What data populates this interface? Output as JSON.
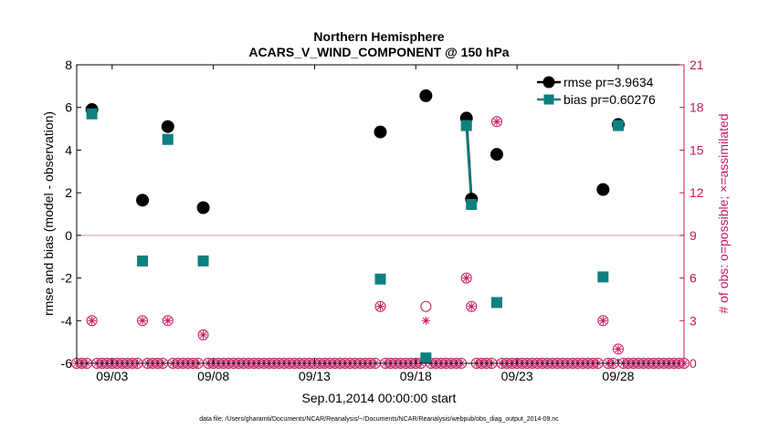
{
  "chart_data": {
    "type": "scatter",
    "title_line1": "Northern Hemisphere",
    "title_line2": "ACARS_V_WIND_COMPONENT @ 150 hPa",
    "xlabel": "Sep.01,2014 00:00:00 start",
    "ylabel_left": "rmse and bias (model - observation)",
    "ylabel_right": "# of obs: o=possible; ×=assimilated",
    "footer": "data file: /Users/gharamti/Documents/NCAR/Reanalysis/~/Documents/NCAR/Reanalysis/webpub/obs_diag_output_2014-09.nc",
    "x_ticks": [
      {
        "day": 3,
        "label": "09/03"
      },
      {
        "day": 8,
        "label": "09/08"
      },
      {
        "day": 13,
        "label": "09/13"
      },
      {
        "day": 18,
        "label": "09/18"
      },
      {
        "day": 23,
        "label": "09/23"
      },
      {
        "day": 28,
        "label": "09/28"
      }
    ],
    "xlim": [
      1.25,
      31.25
    ],
    "ylim_left": [
      -6,
      8
    ],
    "y_ticks_left": [
      -6,
      -4,
      -2,
      0,
      2,
      4,
      6,
      8
    ],
    "ylim_right": [
      0,
      21
    ],
    "y_ticks_right": [
      0,
      3,
      6,
      9,
      12,
      15,
      18,
      21
    ],
    "legend": {
      "position": "top-right",
      "entries": [
        {
          "key": "rmse",
          "label": "rmse pr=3.9634"
        },
        {
          "key": "bias",
          "label": "bias pr=0.60276"
        }
      ]
    },
    "colors": {
      "rmse": "#000000",
      "bias": "#0f7f7f",
      "obs": "#c8175f",
      "zero_line": "#c8a0a8"
    },
    "series": [
      {
        "key": "rmse",
        "name": "rmse pr=3.9634",
        "points": [
          {
            "day": 2.0,
            "value": 5.9
          },
          {
            "day": 4.5,
            "value": 1.65
          },
          {
            "day": 5.75,
            "value": 5.1
          },
          {
            "day": 7.5,
            "value": 1.3
          },
          {
            "day": 16.25,
            "value": 4.85
          },
          {
            "day": 18.5,
            "value": 6.55
          },
          {
            "day": 20.5,
            "value": 5.5
          },
          {
            "day": 20.75,
            "value": 1.7
          },
          {
            "day": 22.0,
            "value": 3.8
          },
          {
            "day": 27.25,
            "value": 2.15
          },
          {
            "day": 28.0,
            "value": 5.2
          }
        ],
        "segments": [
          [
            6,
            7
          ]
        ]
      },
      {
        "key": "bias",
        "name": "bias pr=0.60276",
        "points": [
          {
            "day": 2.0,
            "value": 5.7
          },
          {
            "day": 4.5,
            "value": -1.2
          },
          {
            "day": 5.75,
            "value": 4.5
          },
          {
            "day": 7.5,
            "value": -1.2
          },
          {
            "day": 16.25,
            "value": -2.05
          },
          {
            "day": 18.5,
            "value": -5.75
          },
          {
            "day": 20.5,
            "value": 5.15
          },
          {
            "day": 20.75,
            "value": 1.45
          },
          {
            "day": 22.0,
            "value": -3.15
          },
          {
            "day": 27.25,
            "value": -1.95
          },
          {
            "day": 28.0,
            "value": 5.15
          }
        ],
        "segments": [
          [
            6,
            7
          ]
        ]
      }
    ],
    "obs_counts": {
      "step_days": 0.25,
      "start_day": 1.25,
      "end_day": 31.25,
      "nonzero": [
        {
          "day": 2.0,
          "possible": 3,
          "assimilated": 3
        },
        {
          "day": 4.5,
          "possible": 3,
          "assimilated": 3
        },
        {
          "day": 5.75,
          "possible": 3,
          "assimilated": 3
        },
        {
          "day": 7.5,
          "possible": 2,
          "assimilated": 2
        },
        {
          "day": 16.25,
          "possible": 4,
          "assimilated": 4
        },
        {
          "day": 18.5,
          "possible": 4,
          "assimilated": 3
        },
        {
          "day": 20.5,
          "possible": 6,
          "assimilated": 6
        },
        {
          "day": 20.75,
          "possible": 4,
          "assimilated": 4
        },
        {
          "day": 22.0,
          "possible": 17,
          "assimilated": 17
        },
        {
          "day": 27.25,
          "possible": 3,
          "assimilated": 3
        },
        {
          "day": 28.0,
          "possible": 1,
          "assimilated": 1
        }
      ]
    }
  }
}
